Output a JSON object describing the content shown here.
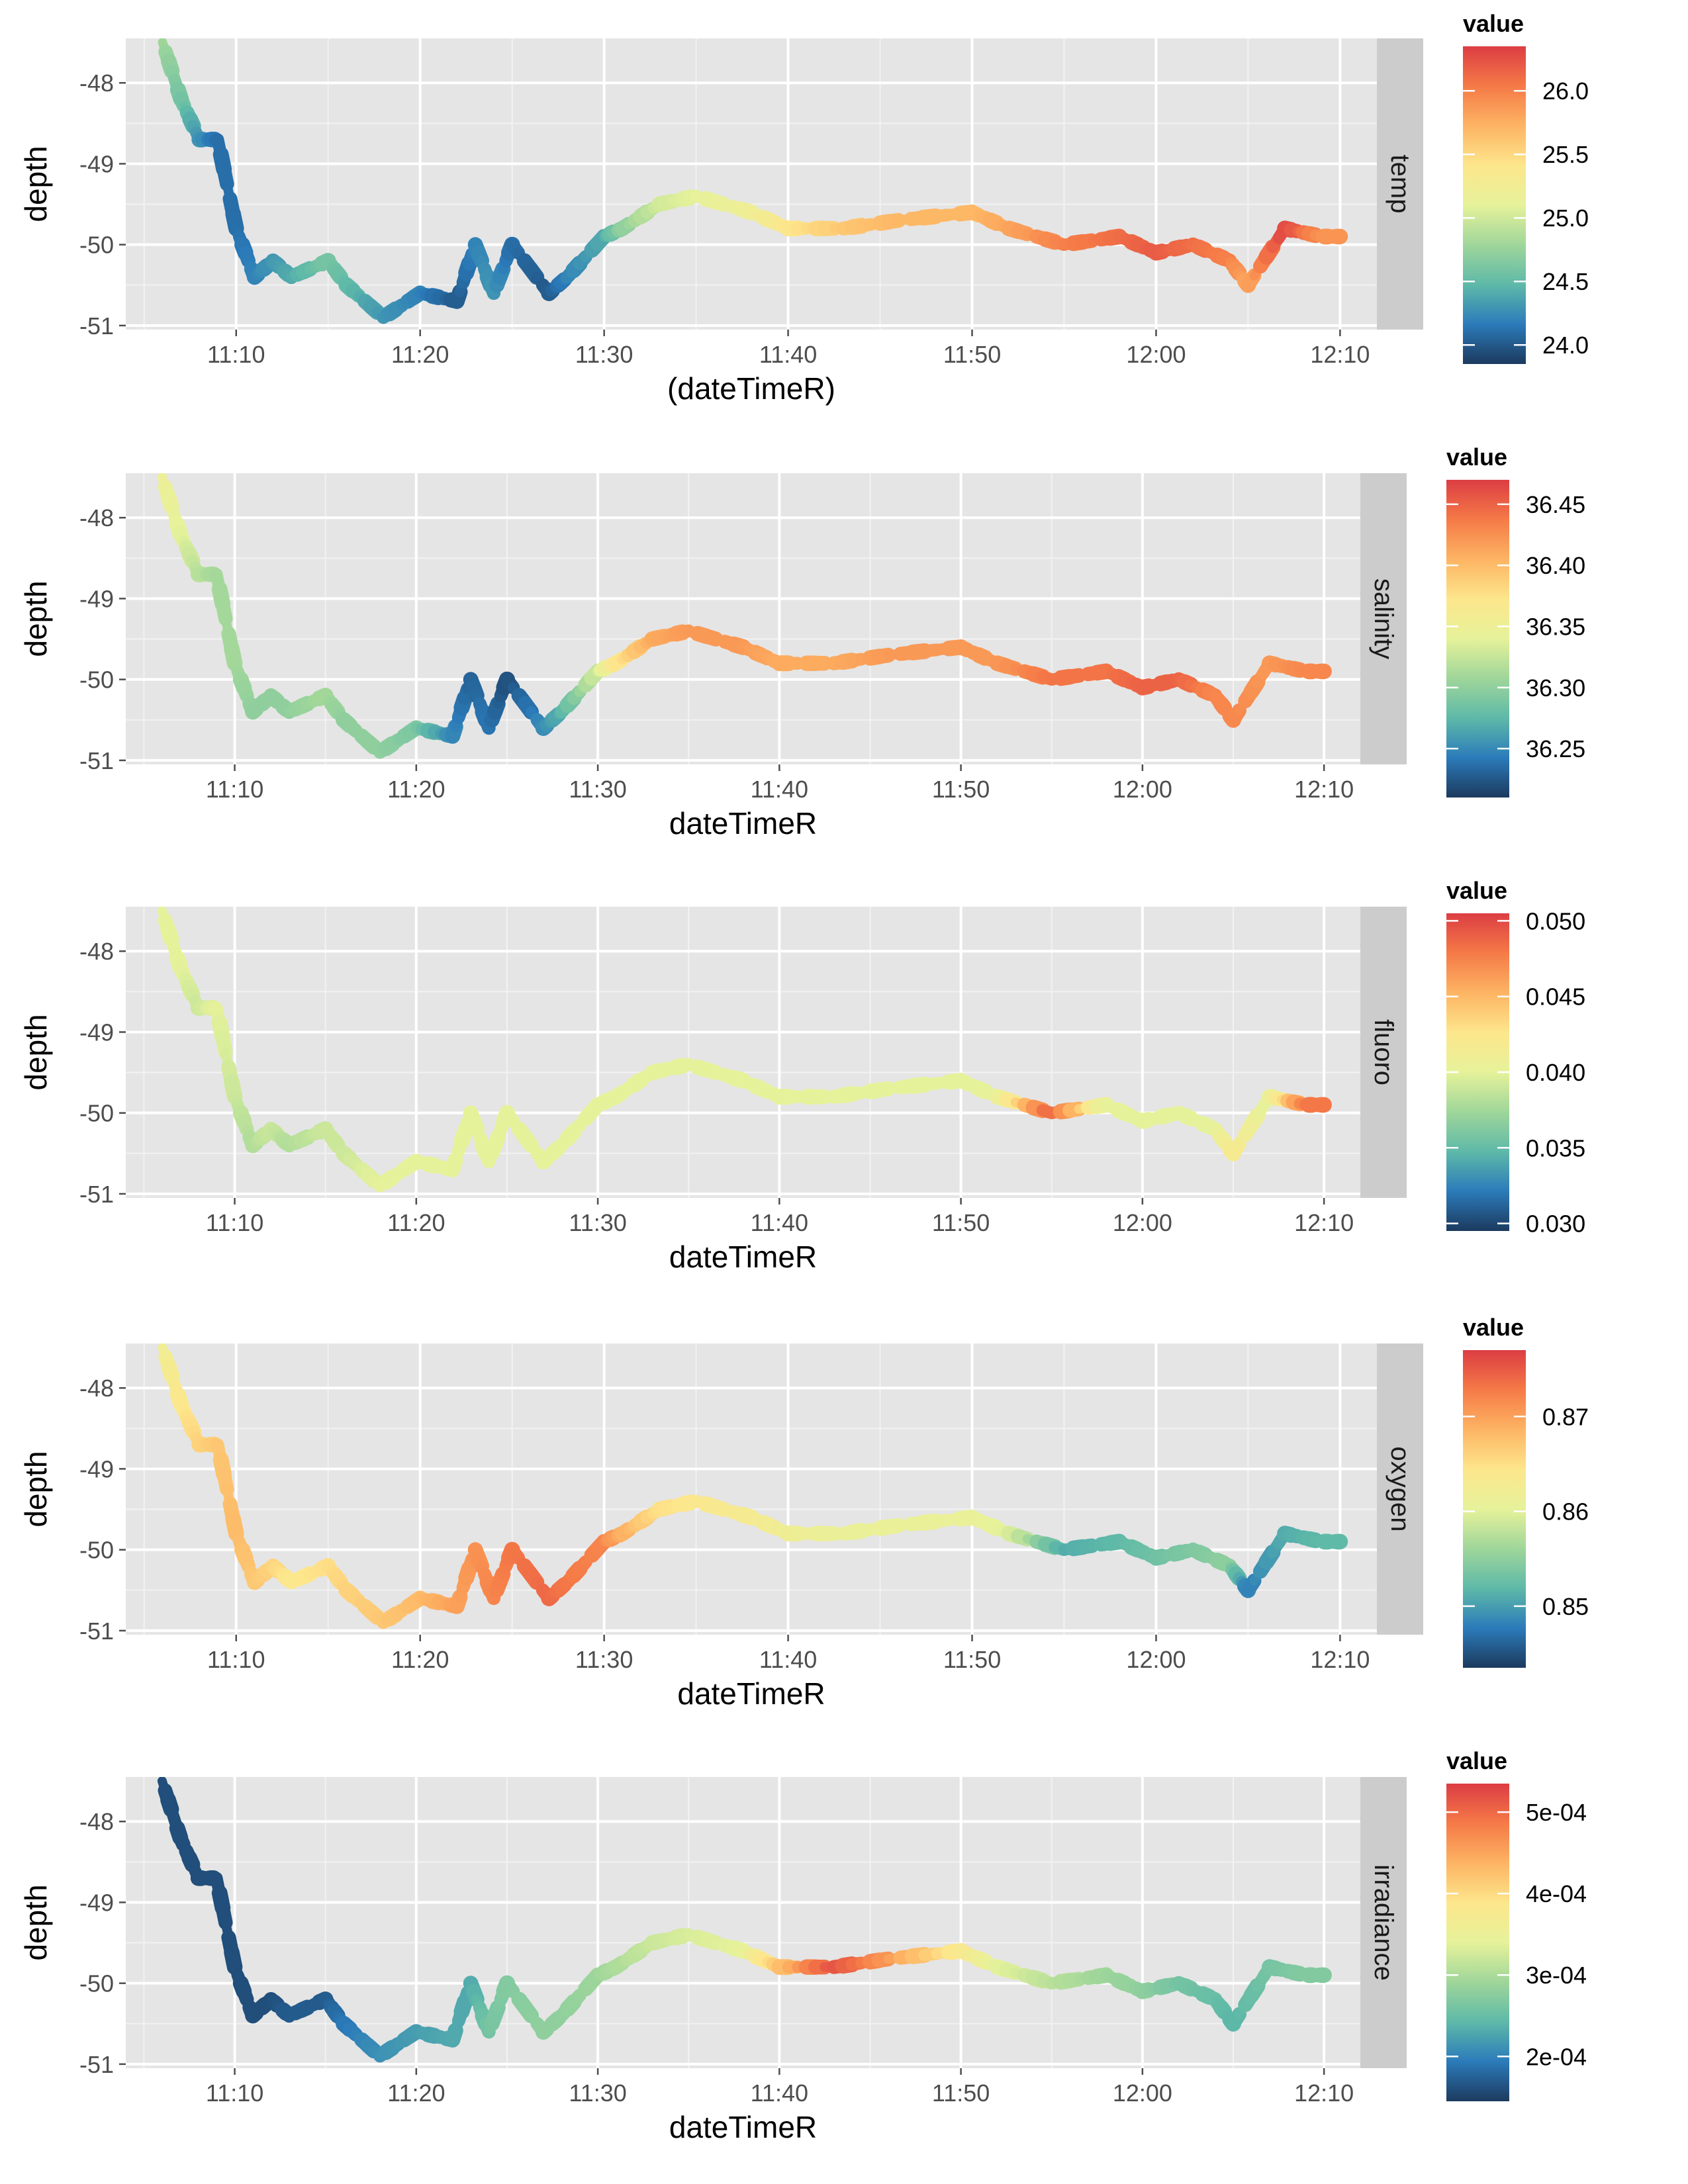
{
  "chart_data": [
    {
      "type": "line",
      "variable": "temp",
      "xlabel": "(dateTimeR)",
      "ylabel": "depth",
      "x_ticks": [
        "11:10",
        "11:20",
        "11:30",
        "11:40",
        "11:50",
        "12:00",
        "12:10"
      ],
      "y_ticks": [
        "-48",
        "-49",
        "-50",
        "-51"
      ],
      "ylim": [
        -51.05,
        -47.45
      ],
      "xlim": [
        "11:04",
        "12:12"
      ],
      "grid": true,
      "legend": {
        "title": "value",
        "position": "right",
        "labels": [
          "26.0",
          "25.5",
          "25.0",
          "24.5",
          "24.0"
        ],
        "ticks": [
          26.0,
          25.5,
          25.0,
          24.5,
          24.0
        ],
        "range": [
          23.85,
          26.35
        ]
      },
      "x_end": "12:10",
      "series": [
        {
          "x": [
            "11:06",
            "11:07",
            "11:08",
            "11:09",
            "11:10",
            "11:11",
            "11:12",
            "11:13",
            "11:15",
            "11:16",
            "11:18",
            "11:20",
            "11:22",
            "11:23",
            "11:24",
            "11:25",
            "11:27",
            "11:28",
            "11:30",
            "11:31",
            "11:33",
            "11:35",
            "11:38",
            "11:40",
            "11:43",
            "11:46",
            "11:50",
            "11:52",
            "11:55",
            "11:58",
            "12:00",
            "12:02",
            "12:04",
            "12:05",
            "12:07",
            "12:09"
          ],
          "y": [
            -47.5,
            -48.2,
            -48.7,
            -48.7,
            -49.8,
            -50.4,
            -50.2,
            -50.4,
            -50.2,
            -50.5,
            -50.9,
            -50.6,
            -50.7,
            -50.0,
            -50.6,
            -50.0,
            -50.6,
            -50.4,
            -49.9,
            -49.8,
            -49.5,
            -49.4,
            -49.6,
            -49.8,
            -49.8,
            -49.7,
            -49.6,
            -49.8,
            -50.0,
            -49.9,
            -50.1,
            -50.0,
            -50.2,
            -50.5,
            -49.8,
            -49.9
          ],
          "values": [
            24.8,
            24.6,
            24.3,
            24.1,
            24.1,
            24.2,
            24.3,
            24.4,
            24.6,
            24.5,
            24.3,
            24.2,
            24.0,
            24.2,
            24.3,
            24.1,
            24.0,
            24.2,
            24.4,
            24.7,
            25.0,
            25.1,
            25.2,
            25.4,
            25.6,
            25.7,
            25.7,
            25.8,
            26.0,
            26.1,
            26.2,
            26.1,
            26.0,
            25.8,
            26.3,
            25.9
          ]
        }
      ]
    },
    {
      "type": "line",
      "variable": "salinity",
      "xlabel": "dateTimeR",
      "ylabel": "depth",
      "x_ticks": [
        "11:10",
        "11:20",
        "11:30",
        "11:40",
        "11:50",
        "12:00",
        "12:10"
      ],
      "y_ticks": [
        "-48",
        "-49",
        "-50",
        "-51"
      ],
      "ylim": [
        -51.05,
        -47.45
      ],
      "xlim": [
        "11:04",
        "12:12"
      ],
      "grid": true,
      "legend": {
        "title": "value",
        "position": "right",
        "labels": [
          "36.45",
          "36.40",
          "36.35",
          "36.30",
          "36.25"
        ],
        "ticks": [
          36.45,
          36.4,
          36.35,
          36.3,
          36.25
        ],
        "range": [
          36.21,
          36.47
        ]
      },
      "x_end": "12:10",
      "series": [
        {
          "x": [
            "11:06",
            "11:07",
            "11:08",
            "11:09",
            "11:10",
            "11:11",
            "11:12",
            "11:13",
            "11:15",
            "11:16",
            "11:18",
            "11:20",
            "11:22",
            "11:23",
            "11:24",
            "11:25",
            "11:27",
            "11:28",
            "11:30",
            "11:31",
            "11:33",
            "11:35",
            "11:38",
            "11:40",
            "11:43",
            "11:46",
            "11:50",
            "11:52",
            "11:55",
            "11:58",
            "12:00",
            "12:02",
            "12:04",
            "12:05",
            "12:07",
            "12:09"
          ],
          "y": [
            -47.5,
            -48.2,
            -48.7,
            -48.7,
            -49.8,
            -50.4,
            -50.2,
            -50.4,
            -50.2,
            -50.5,
            -50.9,
            -50.6,
            -50.7,
            -50.0,
            -50.6,
            -50.0,
            -50.6,
            -50.4,
            -49.9,
            -49.8,
            -49.5,
            -49.4,
            -49.6,
            -49.8,
            -49.8,
            -49.7,
            -49.6,
            -49.8,
            -50.0,
            -49.9,
            -50.1,
            -50.0,
            -50.2,
            -50.5,
            -49.8,
            -49.9
          ],
          "values": [
            36.35,
            36.34,
            36.32,
            36.31,
            36.31,
            36.3,
            36.3,
            36.3,
            36.31,
            36.3,
            36.3,
            36.29,
            36.25,
            36.23,
            36.24,
            36.22,
            36.25,
            36.27,
            36.33,
            36.37,
            36.41,
            36.42,
            36.42,
            36.41,
            36.41,
            36.42,
            36.42,
            36.42,
            36.44,
            36.44,
            36.45,
            36.45,
            36.43,
            36.43,
            36.42,
            36.43
          ]
        }
      ]
    },
    {
      "type": "line",
      "variable": "fluoro",
      "xlabel": "dateTimeR",
      "ylabel": "depth",
      "x_ticks": [
        "11:10",
        "11:20",
        "11:30",
        "11:40",
        "11:50",
        "12:00",
        "12:10"
      ],
      "y_ticks": [
        "-48",
        "-49",
        "-50",
        "-51"
      ],
      "ylim": [
        -51.05,
        -47.45
      ],
      "xlim": [
        "11:04",
        "12:12"
      ],
      "grid": true,
      "legend": {
        "title": "value",
        "position": "right",
        "labels": [
          "0.050",
          "0.045",
          "0.040",
          "0.035",
          "0.030"
        ],
        "ticks": [
          0.05,
          0.045,
          0.04,
          0.035,
          0.03
        ],
        "range": [
          0.0295,
          0.0505
        ]
      },
      "x_end": "12:10",
      "series": [
        {
          "x": [
            "11:06",
            "11:07",
            "11:08",
            "11:09",
            "11:10",
            "11:11",
            "11:12",
            "11:13",
            "11:15",
            "11:16",
            "11:18",
            "11:20",
            "11:22",
            "11:23",
            "11:24",
            "11:25",
            "11:27",
            "11:28",
            "11:30",
            "11:31",
            "11:33",
            "11:35",
            "11:38",
            "11:40",
            "11:43",
            "11:46",
            "11:50",
            "11:52",
            "11:55",
            "11:58",
            "12:00",
            "12:02",
            "12:04",
            "12:05",
            "12:07",
            "12:09"
          ],
          "y": [
            -47.5,
            -48.2,
            -48.7,
            -48.7,
            -49.8,
            -50.4,
            -50.2,
            -50.4,
            -50.2,
            -50.5,
            -50.9,
            -50.6,
            -50.7,
            -50.0,
            -50.6,
            -50.0,
            -50.6,
            -50.4,
            -49.9,
            -49.8,
            -49.5,
            -49.4,
            -49.6,
            -49.8,
            -49.8,
            -49.7,
            -49.6,
            -49.8,
            -50.0,
            -49.9,
            -50.1,
            -50.0,
            -50.2,
            -50.5,
            -49.8,
            -49.9
          ],
          "values": [
            0.04,
            0.04,
            0.039,
            0.04,
            0.039,
            0.038,
            0.039,
            0.038,
            0.039,
            0.039,
            0.04,
            0.04,
            0.04,
            0.04,
            0.04,
            0.04,
            0.04,
            0.04,
            0.04,
            0.04,
            0.04,
            0.04,
            0.04,
            0.04,
            0.04,
            0.04,
            0.04,
            0.04,
            0.049,
            0.04,
            0.04,
            0.04,
            0.04,
            0.042,
            0.04,
            0.048
          ]
        }
      ]
    },
    {
      "type": "line",
      "variable": "oxygen",
      "xlabel": "dateTimeR",
      "ylabel": "depth",
      "x_ticks": [
        "11:10",
        "11:20",
        "11:30",
        "11:40",
        "11:50",
        "12:00",
        "12:10"
      ],
      "y_ticks": [
        "-48",
        "-49",
        "-50",
        "-51"
      ],
      "ylim": [
        -51.05,
        -47.45
      ],
      "xlim": [
        "11:04",
        "12:12"
      ],
      "grid": true,
      "legend": {
        "title": "value",
        "position": "right",
        "labels": [
          "0.87",
          "0.86",
          "0.85"
        ],
        "ticks": [
          0.87,
          0.86,
          0.85
        ],
        "range": [
          0.8435,
          0.877
        ]
      },
      "x_end": "12:10",
      "series": [
        {
          "x": [
            "11:06",
            "11:07",
            "11:08",
            "11:09",
            "11:10",
            "11:11",
            "11:12",
            "11:13",
            "11:15",
            "11:16",
            "11:18",
            "11:20",
            "11:22",
            "11:23",
            "11:24",
            "11:25",
            "11:27",
            "11:28",
            "11:30",
            "11:31",
            "11:33",
            "11:35",
            "11:38",
            "11:40",
            "11:43",
            "11:46",
            "11:50",
            "11:52",
            "11:55",
            "11:58",
            "12:00",
            "12:02",
            "12:04",
            "12:05",
            "12:07",
            "12:09"
          ],
          "y": [
            -47.5,
            -48.2,
            -48.7,
            -48.7,
            -49.8,
            -50.4,
            -50.2,
            -50.4,
            -50.2,
            -50.5,
            -50.9,
            -50.6,
            -50.7,
            -50.0,
            -50.6,
            -50.0,
            -50.6,
            -50.4,
            -49.9,
            -49.8,
            -49.5,
            -49.4,
            -49.6,
            -49.8,
            -49.8,
            -49.7,
            -49.6,
            -49.8,
            -50.0,
            -49.9,
            -50.1,
            -50.0,
            -50.2,
            -50.5,
            -49.8,
            -49.9
          ],
          "values": [
            0.862,
            0.864,
            0.866,
            0.867,
            0.868,
            0.867,
            0.866,
            0.864,
            0.865,
            0.866,
            0.867,
            0.868,
            0.87,
            0.871,
            0.872,
            0.873,
            0.874,
            0.873,
            0.872,
            0.869,
            0.865,
            0.864,
            0.863,
            0.862,
            0.861,
            0.861,
            0.861,
            0.86,
            0.851,
            0.852,
            0.853,
            0.854,
            0.855,
            0.848,
            0.851,
            0.852
          ]
        }
      ]
    },
    {
      "type": "line",
      "variable": "irradiance",
      "xlabel": "dateTimeR",
      "ylabel": "depth",
      "x_ticks": [
        "11:10",
        "11:20",
        "11:30",
        "11:40",
        "11:50",
        "12:00",
        "12:10"
      ],
      "y_ticks": [
        "-48",
        "-49",
        "-50",
        "-51"
      ],
      "ylim": [
        -51.05,
        -47.45
      ],
      "xlim": [
        "11:04",
        "12:12"
      ],
      "grid": true,
      "legend": {
        "title": "value",
        "position": "right",
        "labels": [
          "5e-04",
          "4e-04",
          "3e-04",
          "2e-04"
        ],
        "ticks": [
          0.0005,
          0.0004,
          0.0003,
          0.0002
        ],
        "range": [
          0.000145,
          0.000535
        ]
      },
      "x_end": "12:10",
      "series": [
        {
          "x": [
            "11:06",
            "11:07",
            "11:08",
            "11:09",
            "11:10",
            "11:11",
            "11:12",
            "11:13",
            "11:15",
            "11:16",
            "11:18",
            "11:20",
            "11:22",
            "11:23",
            "11:24",
            "11:25",
            "11:27",
            "11:28",
            "11:30",
            "11:31",
            "11:33",
            "11:35",
            "11:38",
            "11:40",
            "11:43",
            "11:46",
            "11:50",
            "11:52",
            "11:55",
            "11:58",
            "12:00",
            "12:02",
            "12:04",
            "12:05",
            "12:07",
            "12:09"
          ],
          "y": [
            -47.5,
            -48.2,
            -48.7,
            -48.7,
            -49.8,
            -50.4,
            -50.2,
            -50.4,
            -50.2,
            -50.5,
            -50.9,
            -50.6,
            -50.7,
            -50.0,
            -50.6,
            -50.0,
            -50.6,
            -50.4,
            -49.9,
            -49.8,
            -49.5,
            -49.4,
            -49.6,
            -49.8,
            -49.8,
            -49.7,
            -49.6,
            -49.8,
            -50.0,
            -49.9,
            -50.1,
            -50.0,
            -50.2,
            -50.5,
            -49.8,
            -49.9
          ],
          "values": [
            0.00016,
            0.00016,
            0.00016,
            0.00016,
            0.00016,
            0.00016,
            0.00016,
            0.00017,
            0.00017,
            0.00019,
            0.00021,
            0.00022,
            0.00023,
            0.00023,
            0.00026,
            0.00027,
            0.00028,
            0.00028,
            0.00029,
            0.0003,
            0.00032,
            0.00033,
            0.00034,
            0.00042,
            0.00052,
            0.00046,
            0.00038,
            0.00034,
            0.00031,
            0.00029,
            0.00028,
            0.00026,
            0.00025,
            0.00024,
            0.00026,
            0.00027
          ]
        }
      ]
    }
  ]
}
